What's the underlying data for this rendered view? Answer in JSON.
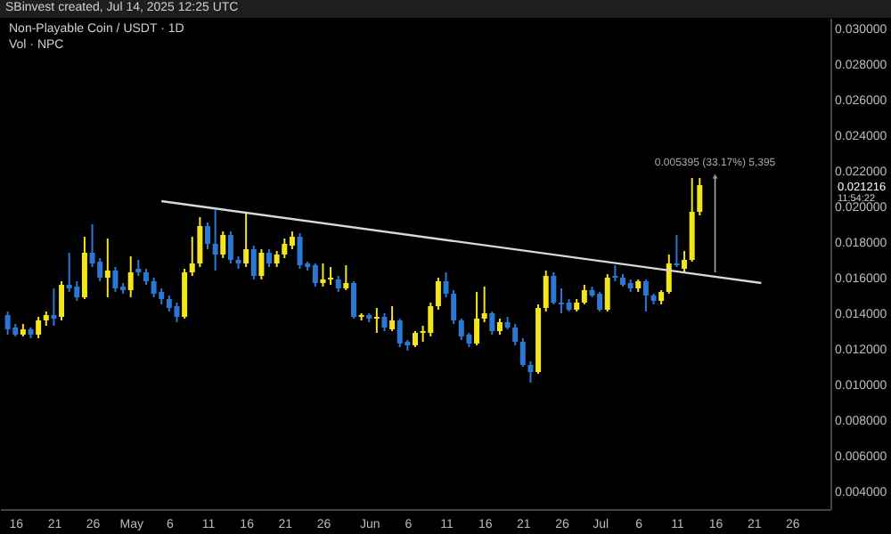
{
  "chart_data": {
    "type": "candlestick",
    "title": "Non-Playable Coin / USDT · 1D",
    "annotations": [
      "SBinvest created, Jul 14, 2025 12:25 UTC",
      "Vol · NPC",
      {
        "text": "0.005395 (33.17%) 5,395",
        "x": "2025-07-16",
        "y": 0.0217
      },
      "0.021216",
      "11:54:22"
    ],
    "x": [
      "2025-04-15",
      "2025-04-16",
      "2025-04-17",
      "2025-04-18",
      "2025-04-19",
      "2025-04-20",
      "2025-04-21",
      "2025-04-22",
      "2025-04-23",
      "2025-04-24",
      "2025-04-25",
      "2025-04-26",
      "2025-04-27",
      "2025-04-28",
      "2025-04-29",
      "2025-04-30",
      "2025-05-01",
      "2025-05-02",
      "2025-05-03",
      "2025-05-04",
      "2025-05-05",
      "2025-05-06",
      "2025-05-07",
      "2025-05-08",
      "2025-05-09",
      "2025-05-10",
      "2025-05-11",
      "2025-05-12",
      "2025-05-13",
      "2025-05-14",
      "2025-05-15",
      "2025-05-16",
      "2025-05-17",
      "2025-05-18",
      "2025-05-19",
      "2025-05-20",
      "2025-05-21",
      "2025-05-22",
      "2025-05-23",
      "2025-05-24",
      "2025-05-25",
      "2025-05-26",
      "2025-05-27",
      "2025-05-28",
      "2025-05-29",
      "2025-05-30",
      "2025-05-31",
      "2025-06-01",
      "2025-06-02",
      "2025-06-03",
      "2025-06-04",
      "2025-06-05",
      "2025-06-06",
      "2025-06-07",
      "2025-06-08",
      "2025-06-09",
      "2025-06-10",
      "2025-06-11",
      "2025-06-12",
      "2025-06-13",
      "2025-06-14",
      "2025-06-15",
      "2025-06-16",
      "2025-06-17",
      "2025-06-18",
      "2025-06-19",
      "2025-06-20",
      "2025-06-21",
      "2025-06-22",
      "2025-06-23",
      "2025-06-24",
      "2025-06-25",
      "2025-06-26",
      "2025-06-27",
      "2025-06-28",
      "2025-06-29",
      "2025-06-30",
      "2025-07-01",
      "2025-07-02",
      "2025-07-03",
      "2025-07-04",
      "2025-07-05",
      "2025-07-06",
      "2025-07-07",
      "2025-07-08",
      "2025-07-09",
      "2025-07-10",
      "2025-07-11",
      "2025-07-12",
      "2025-07-13",
      "2025-07-14"
    ],
    "ohlc": [
      [
        0.0139,
        0.0141,
        0.0128,
        0.0131
      ],
      [
        0.0132,
        0.0134,
        0.0127,
        0.0128
      ],
      [
        0.0128,
        0.0134,
        0.0127,
        0.0131
      ],
      [
        0.0131,
        0.0132,
        0.0126,
        0.0128
      ],
      [
        0.0128,
        0.0138,
        0.0126,
        0.0136
      ],
      [
        0.0136,
        0.0141,
        0.0133,
        0.0139
      ],
      [
        0.0139,
        0.0154,
        0.0133,
        0.0137
      ],
      [
        0.0138,
        0.0158,
        0.0136,
        0.0156
      ],
      [
        0.0156,
        0.0174,
        0.0152,
        0.0154
      ],
      [
        0.0155,
        0.0158,
        0.0147,
        0.0149
      ],
      [
        0.0149,
        0.0183,
        0.0148,
        0.0174
      ],
      [
        0.0174,
        0.019,
        0.0166,
        0.0168
      ],
      [
        0.0169,
        0.0171,
        0.0158,
        0.016
      ],
      [
        0.016,
        0.0182,
        0.0149,
        0.0164
      ],
      [
        0.0164,
        0.0166,
        0.0152,
        0.0154
      ],
      [
        0.0155,
        0.0157,
        0.0151,
        0.0153
      ],
      [
        0.0153,
        0.0172,
        0.0149,
        0.0163
      ],
      [
        0.0165,
        0.017,
        0.0161,
        0.0163
      ],
      [
        0.0163,
        0.0165,
        0.0156,
        0.0158
      ],
      [
        0.0158,
        0.016,
        0.0149,
        0.0151
      ],
      [
        0.0152,
        0.0154,
        0.0145,
        0.0148
      ],
      [
        0.0148,
        0.015,
        0.0141,
        0.0143
      ],
      [
        0.0144,
        0.0146,
        0.0135,
        0.0138
      ],
      [
        0.0138,
        0.0165,
        0.0137,
        0.0163
      ],
      [
        0.0163,
        0.0183,
        0.0161,
        0.0168
      ],
      [
        0.0168,
        0.0194,
        0.0166,
        0.0189
      ],
      [
        0.0189,
        0.0191,
        0.0176,
        0.0179
      ],
      [
        0.0179,
        0.0198,
        0.0164,
        0.0173
      ],
      [
        0.0173,
        0.0186,
        0.0171,
        0.0184
      ],
      [
        0.0184,
        0.0186,
        0.0168,
        0.017
      ],
      [
        0.017,
        0.0172,
        0.0165,
        0.0168
      ],
      [
        0.0168,
        0.0197,
        0.0166,
        0.0176
      ],
      [
        0.0176,
        0.0178,
        0.0159,
        0.0161
      ],
      [
        0.0161,
        0.0176,
        0.0159,
        0.0174
      ],
      [
        0.0174,
        0.0176,
        0.0166,
        0.0168
      ],
      [
        0.0168,
        0.0175,
        0.0166,
        0.0173
      ],
      [
        0.0173,
        0.0182,
        0.0171,
        0.0179
      ],
      [
        0.0178,
        0.0186,
        0.0176,
        0.0183
      ],
      [
        0.0183,
        0.0185,
        0.0165,
        0.0167
      ],
      [
        0.0168,
        0.0169,
        0.0164,
        0.0166
      ],
      [
        0.0167,
        0.0168,
        0.0155,
        0.0157
      ],
      [
        0.0157,
        0.0168,
        0.0155,
        0.0159
      ],
      [
        0.0159,
        0.0166,
        0.0156,
        0.016
      ],
      [
        0.0159,
        0.0161,
        0.0152,
        0.0154
      ],
      [
        0.0154,
        0.0167,
        0.0153,
        0.0157
      ],
      [
        0.0157,
        0.0158,
        0.0137,
        0.0138
      ],
      [
        0.0138,
        0.014,
        0.0136,
        0.0139
      ],
      [
        0.0139,
        0.014,
        0.0135,
        0.0137
      ],
      [
        0.0137,
        0.0143,
        0.0129,
        0.0138
      ],
      [
        0.0138,
        0.014,
        0.013,
        0.0132
      ],
      [
        0.0131,
        0.0144,
        0.013,
        0.0136
      ],
      [
        0.0136,
        0.0137,
        0.0121,
        0.0123
      ],
      [
        0.0124,
        0.0125,
        0.0119,
        0.0122
      ],
      [
        0.0122,
        0.013,
        0.0121,
        0.0129
      ],
      [
        0.0129,
        0.0133,
        0.0124,
        0.013
      ],
      [
        0.0129,
        0.0146,
        0.0127,
        0.0144
      ],
      [
        0.0144,
        0.016,
        0.0142,
        0.0158
      ],
      [
        0.0158,
        0.0163,
        0.0149,
        0.0151
      ],
      [
        0.0151,
        0.0153,
        0.0134,
        0.0136
      ],
      [
        0.0136,
        0.0137,
        0.0125,
        0.0127
      ],
      [
        0.0128,
        0.0129,
        0.0121,
        0.0123
      ],
      [
        0.0123,
        0.0152,
        0.0122,
        0.0137
      ],
      [
        0.0137,
        0.0155,
        0.0135,
        0.014
      ],
      [
        0.014,
        0.0141,
        0.0128,
        0.013
      ],
      [
        0.013,
        0.0137,
        0.0128,
        0.0135
      ],
      [
        0.0135,
        0.0138,
        0.0131,
        0.0132
      ],
      [
        0.0132,
        0.0134,
        0.0122,
        0.0124
      ],
      [
        0.0124,
        0.0126,
        0.011,
        0.0111
      ],
      [
        0.0111,
        0.0113,
        0.0101,
        0.0107
      ],
      [
        0.0107,
        0.0145,
        0.0106,
        0.0143
      ],
      [
        0.0143,
        0.0164,
        0.0141,
        0.0161
      ],
      [
        0.0161,
        0.0163,
        0.0145,
        0.0146
      ],
      [
        0.0146,
        0.0154,
        0.014,
        0.0145
      ],
      [
        0.0146,
        0.0148,
        0.0141,
        0.0142
      ],
      [
        0.0142,
        0.0148,
        0.0141,
        0.0146
      ],
      [
        0.0146,
        0.0156,
        0.0145,
        0.0153
      ],
      [
        0.0153,
        0.0155,
        0.0149,
        0.015
      ],
      [
        0.0151,
        0.0152,
        0.0141,
        0.0142
      ],
      [
        0.0142,
        0.0162,
        0.0141,
        0.016
      ],
      [
        0.0161,
        0.0167,
        0.0158,
        0.016
      ],
      [
        0.016,
        0.0162,
        0.0155,
        0.0156
      ],
      [
        0.0157,
        0.0159,
        0.0152,
        0.0154
      ],
      [
        0.0154,
        0.0159,
        0.0152,
        0.0158
      ],
      [
        0.0158,
        0.0159,
        0.0141,
        0.015
      ],
      [
        0.015,
        0.0151,
        0.0145,
        0.0147
      ],
      [
        0.0147,
        0.0153,
        0.0145,
        0.0152
      ],
      [
        0.0152,
        0.0173,
        0.0151,
        0.0168
      ],
      [
        0.0168,
        0.0184,
        0.0166,
        0.0167
      ],
      [
        0.0165,
        0.0175,
        0.0163,
        0.017
      ],
      [
        0.017,
        0.0216,
        0.0169,
        0.0197
      ],
      [
        0.0197,
        0.0216,
        0.0195,
        0.0212
      ]
    ],
    "colors": [
      "#2a78d1",
      "#2a78d1",
      "#f2e41f",
      "#2a78d1",
      "#f2e41f",
      "#f2e41f",
      "#2a78d1",
      "#f2e41f",
      "#2a78d1",
      "#2a78d1",
      "#f2e41f",
      "#2a78d1",
      "#2a78d1",
      "#f2e41f",
      "#2a78d1",
      "#2a78d1",
      "#f2e41f",
      "#2a78d1",
      "#2a78d1",
      "#2a78d1",
      "#2a78d1",
      "#2a78d1",
      "#2a78d1",
      "#f2e41f",
      "#f2e41f",
      "#f2e41f",
      "#2a78d1",
      "#2a78d1",
      "#f2e41f",
      "#2a78d1",
      "#2a78d1",
      "#f2e41f",
      "#2a78d1",
      "#f2e41f",
      "#2a78d1",
      "#f2e41f",
      "#f2e41f",
      "#f2e41f",
      "#2a78d1",
      "#2a78d1",
      "#2a78d1",
      "#f2e41f",
      "#f2e41f",
      "#2a78d1",
      "#f2e41f",
      "#2a78d1",
      "#f2e41f",
      "#2a78d1",
      "#f2e41f",
      "#2a78d1",
      "#f2e41f",
      "#2a78d1",
      "#2a78d1",
      "#f2e41f",
      "#f2e41f",
      "#f2e41f",
      "#f2e41f",
      "#2a78d1",
      "#2a78d1",
      "#2a78d1",
      "#2a78d1",
      "#f2e41f",
      "#f2e41f",
      "#2a78d1",
      "#f2e41f",
      "#2a78d1",
      "#2a78d1",
      "#2a78d1",
      "#2a78d1",
      "#f2e41f",
      "#f2e41f",
      "#2a78d1",
      "#2a78d1",
      "#2a78d1",
      "#f2e41f",
      "#f2e41f",
      "#2a78d1",
      "#2a78d1",
      "#f2e41f",
      "#2a78d1",
      "#2a78d1",
      "#2a78d1",
      "#f2e41f",
      "#2a78d1",
      "#2a78d1",
      "#f2e41f",
      "#f2e41f",
      "#2a78d1",
      "#f2e41f",
      "#f2e41f",
      "#f2e41f"
    ],
    "series": [
      {
        "type": "line",
        "color": "#d9d9d9",
        "x": [
          "2025-05-05",
          "2025-07-22"
        ],
        "values": [
          0.0203,
          0.0157
        ]
      }
    ],
    "xlim": [
      "2025-04-14",
      "2025-07-31"
    ],
    "xticks": [
      {
        "value": "2025-04-16",
        "label": "16"
      },
      {
        "value": "2025-04-21",
        "label": "21"
      },
      {
        "value": "2025-04-26",
        "label": "26"
      },
      {
        "value": "2025-05-01",
        "label": "May"
      },
      {
        "value": "2025-05-06",
        "label": "6"
      },
      {
        "value": "2025-05-11",
        "label": "11"
      },
      {
        "value": "2025-05-16",
        "label": "16"
      },
      {
        "value": "2025-05-21",
        "label": "21"
      },
      {
        "value": "2025-05-26",
        "label": "26"
      },
      {
        "value": "2025-06-01",
        "label": "Jun"
      },
      {
        "value": "2025-06-06",
        "label": "6"
      },
      {
        "value": "2025-06-11",
        "label": "11"
      },
      {
        "value": "2025-06-16",
        "label": "16"
      },
      {
        "value": "2025-06-21",
        "label": "21"
      },
      {
        "value": "2025-06-26",
        "label": "26"
      },
      {
        "value": "2025-07-01",
        "label": "Jul"
      },
      {
        "value": "2025-07-06",
        "label": "6"
      },
      {
        "value": "2025-07-11",
        "label": "11"
      },
      {
        "value": "2025-07-16",
        "label": "16"
      },
      {
        "value": "2025-07-21",
        "label": "21"
      },
      {
        "value": "2025-07-26",
        "label": "26"
      }
    ],
    "ylim": [
      0.003,
      0.0306
    ],
    "yticks": [
      {
        "value": 0.004,
        "label": "0.004000"
      },
      {
        "value": 0.006,
        "label": "0.006000"
      },
      {
        "value": 0.008,
        "label": "0.008000"
      },
      {
        "value": 0.01,
        "label": "0.010000"
      },
      {
        "value": 0.012,
        "label": "0.012000"
      },
      {
        "value": 0.014,
        "label": "0.014000"
      },
      {
        "value": 0.016,
        "label": "0.016000"
      },
      {
        "value": 0.018,
        "label": "0.018000"
      },
      {
        "value": 0.02,
        "label": "0.020000"
      },
      {
        "value": 0.022,
        "label": "0.022000"
      },
      {
        "value": 0.024,
        "label": "0.024000"
      },
      {
        "value": 0.026,
        "label": "0.026000"
      },
      {
        "value": 0.028,
        "label": "0.028000"
      },
      {
        "value": 0.03,
        "label": "0.030000"
      }
    ]
  }
}
